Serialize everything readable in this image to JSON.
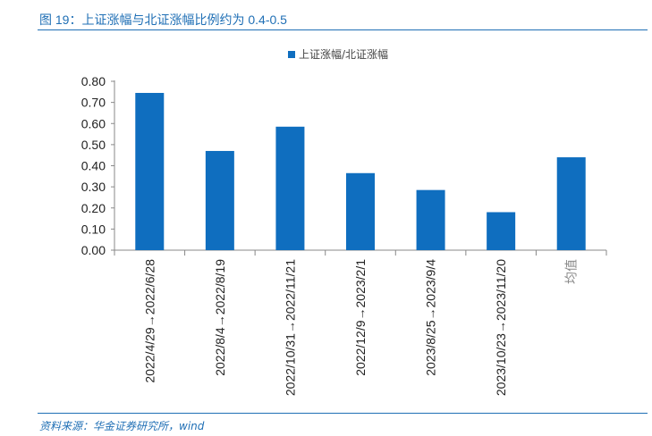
{
  "figure": {
    "title": "图 19：上证涨幅与北证涨幅比例约为 0.4-0.5",
    "source": "资料来源：华金证券研究所，wind"
  },
  "chart_data": {
    "type": "bar",
    "categories": [
      "2022/4/29→2022/6/28",
      "2022/8/4→2022/8/19",
      "2022/10/31→2022/11/21",
      "2022/12/9→2023/2/1",
      "2023/8/25→2023/9/4",
      "2023/10/23→2023/11/20",
      "均值"
    ],
    "series": [
      {
        "name": "上证涨幅/北证涨幅",
        "values": [
          0.745,
          0.47,
          0.585,
          0.365,
          0.285,
          0.18,
          0.44
        ],
        "color": "#0f6ebf"
      }
    ],
    "yticks": [
      "0.00",
      "0.10",
      "0.20",
      "0.30",
      "0.40",
      "0.50",
      "0.60",
      "0.70",
      "0.80"
    ],
    "ylim": [
      0,
      0.8
    ],
    "xlabel": "",
    "ylabel": "",
    "grid": false,
    "legend_position": "top-center"
  }
}
